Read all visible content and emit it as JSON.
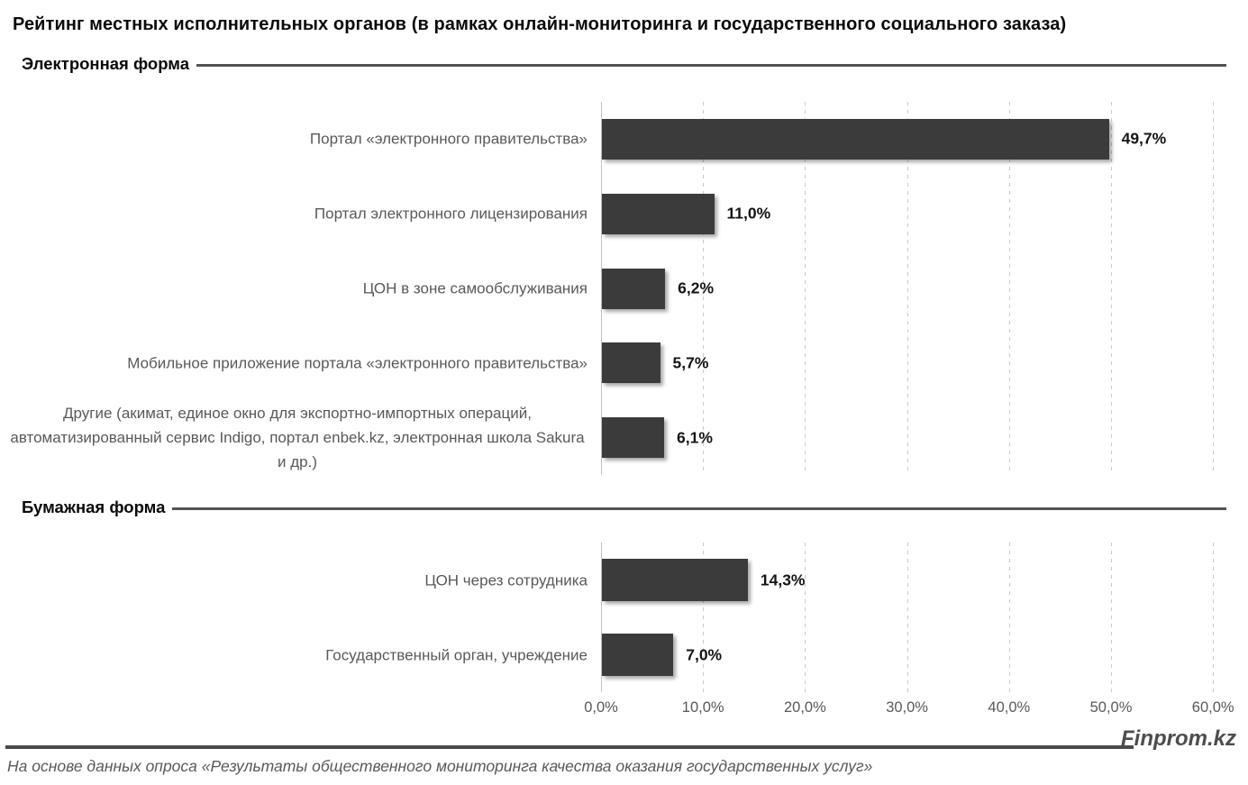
{
  "title": "Рейтинг местных исполнительных органов (в рамках онлайн-мониторинга и государственного социального заказа)",
  "axis": {
    "ticks": [
      "0,0%",
      "10,0%",
      "20,0%",
      "30,0%",
      "40,0%",
      "50,0%",
      "60,0%"
    ],
    "min": 0,
    "max": 60,
    "step": 10,
    "unit": "%"
  },
  "chart_data": [
    {
      "type": "bar",
      "orientation": "horizontal",
      "section": "Электронная форма",
      "categories": [
        "Портал «электронного правительства»",
        "Портал электронного лицензирования",
        "ЦОН в зоне самообслуживания",
        "Мобильное приложение портала «электронного правительства»",
        "Другие (акимат, единое окно для экспортно-импортных операций, автоматизированный сервис Indigo, портал enbek.kz, электронная школа Sakura и др.)"
      ],
      "values": [
        49.7,
        11.0,
        6.2,
        5.7,
        6.1
      ],
      "value_labels": [
        "49,7%",
        "11,0%",
        "6,2%",
        "5,7%",
        "6,1%"
      ],
      "xlim": [
        0,
        60
      ],
      "grid": true,
      "legend": "none"
    },
    {
      "type": "bar",
      "orientation": "horizontal",
      "section": "Бумажная форма",
      "categories": [
        "ЦОН через сотрудника",
        "Государственный орган, учреждение"
      ],
      "values": [
        14.3,
        7.0
      ],
      "value_labels": [
        "14,3%",
        "7,0%"
      ],
      "xlim": [
        0,
        60
      ],
      "grid": true,
      "legend": "none"
    }
  ],
  "watermark": "Finprom.kz",
  "footer": "На основе данных опроса «Результаты общественного мониторинга качества оказания государственных услуг»",
  "colors": {
    "bar": "#3b3b3b",
    "grid_line": "#c9c9c9",
    "category_label": "#595959",
    "value_label": "#141414",
    "axis_tick": "#595959",
    "section_rule": "#545454",
    "watermark_text": "#4d4d4d",
    "footer_text": "#595959"
  }
}
